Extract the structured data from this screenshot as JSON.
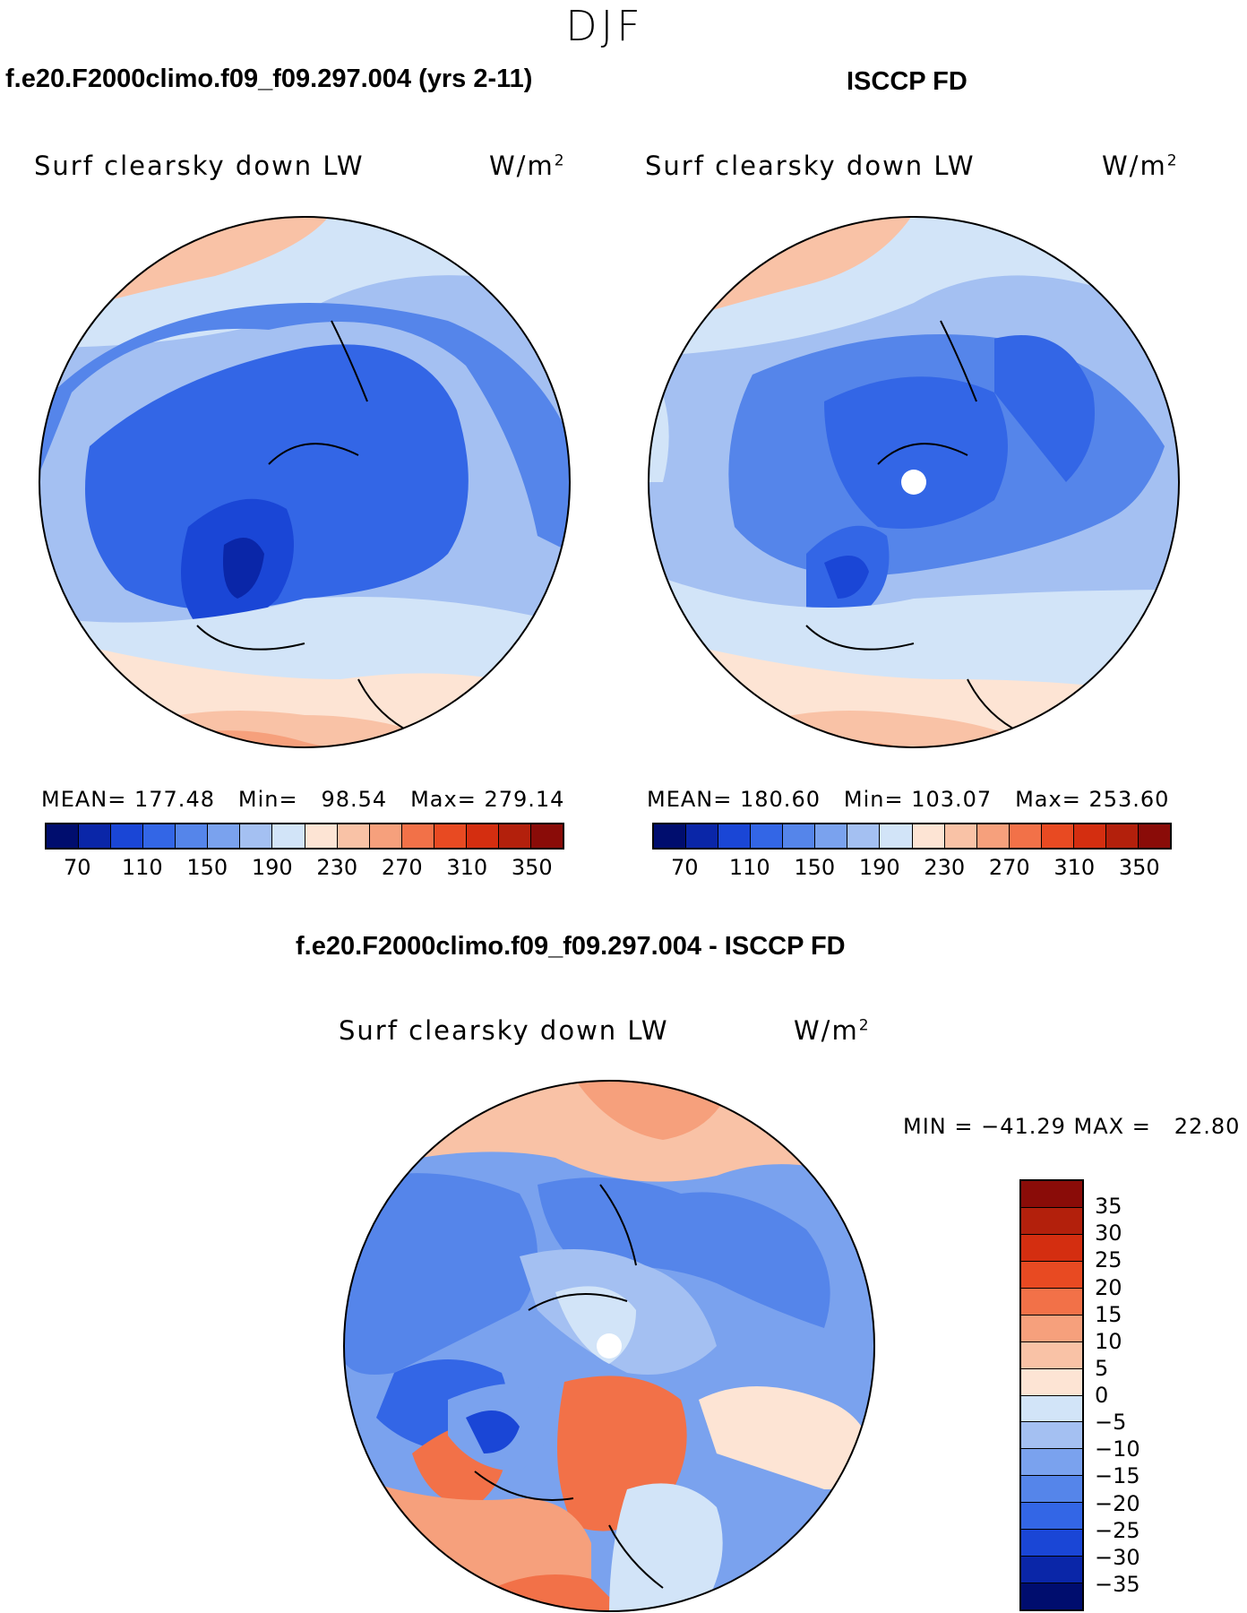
{
  "season": "DJF",
  "panels": [
    {
      "title": "f.e20.F2000climo.f09_f09.297.004 (yrs 2-11)",
      "variable": "Surf clearsky down LW",
      "units_base": "W/m",
      "units_exp": "2",
      "mean_label": "MEAN=",
      "mean_value": "177.48",
      "min_label": "Min=",
      "min_value": "98.54",
      "max_label": "Max=",
      "max_value": "279.14"
    },
    {
      "title": "ISCCP FD",
      "variable": "Surf clearsky down LW",
      "units_base": "W/m",
      "units_exp": "2",
      "mean_label": "MEAN=",
      "mean_value": "180.60",
      "min_label": "Min=",
      "min_value": "103.07",
      "max_label": "Max=",
      "max_value": "253.60"
    }
  ],
  "diff": {
    "title": "f.e20.F2000climo.f09_f09.297.004 - ISCCP FD",
    "variable": "Surf clearsky down LW",
    "units_base": "W/m",
    "units_exp": "2",
    "minmax": "MIN = −41.29 MAX =   22.80"
  },
  "colorbar_abs": {
    "colors": [
      "#000d6e",
      "#0a26a8",
      "#1a46d6",
      "#3366e6",
      "#5585ea",
      "#7aa2ee",
      "#a4c0f2",
      "#d2e4f8",
      "#fde4d4",
      "#f9c2a6",
      "#f6a07c",
      "#f27148",
      "#e84a22",
      "#d42e10",
      "#b3200c",
      "#8a0c08"
    ],
    "ticks": [
      "70",
      "110",
      "150",
      "190",
      "230",
      "270",
      "310",
      "350"
    ]
  },
  "colorbar_diff": {
    "colors": [
      "#8a0c08",
      "#b3200c",
      "#d42e10",
      "#e84a22",
      "#f27148",
      "#f6a07c",
      "#f9c2a6",
      "#fde4d4",
      "#d2e4f8",
      "#a4c0f2",
      "#7aa2ee",
      "#5585ea",
      "#3366e6",
      "#1a46d6",
      "#0a26a8",
      "#000d6e"
    ],
    "ticks": [
      "35",
      "30",
      "25",
      "20",
      "15",
      "10",
      "5",
      "0",
      "−5",
      "−10",
      "−15",
      "−20",
      "−25",
      "−30",
      "−35"
    ]
  }
}
